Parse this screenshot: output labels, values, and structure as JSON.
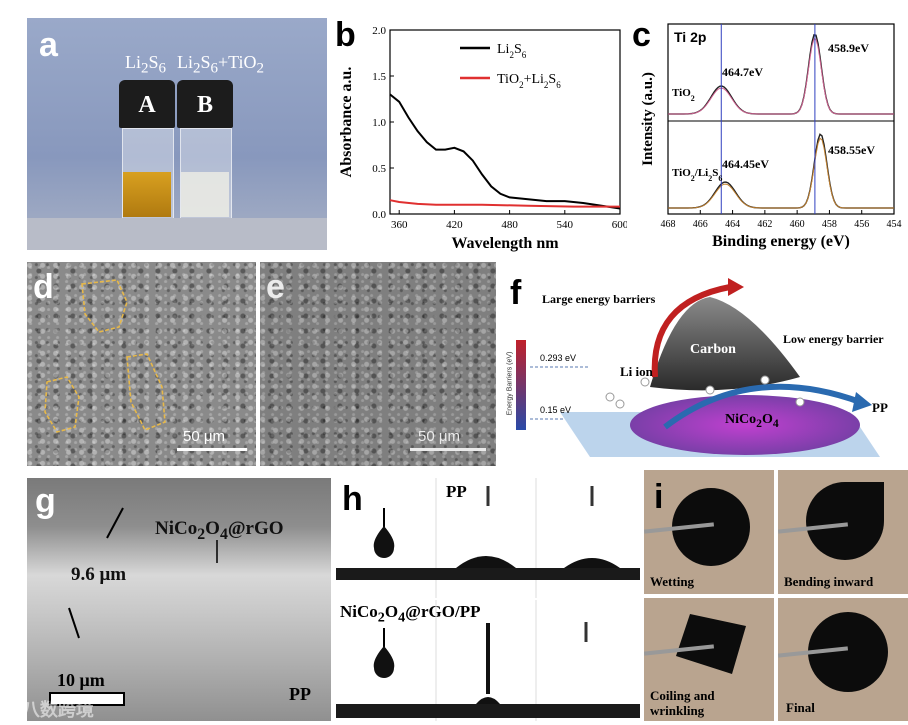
{
  "panel_a": {
    "label": "a",
    "vial_a_title_html": "Li<sub>2</sub>S<sub>6</sub>",
    "vial_b_title_html": "Li<sub>2</sub>S<sub>6</sub>+TiO<sub>2</sub>",
    "vial_a_cap": "A",
    "vial_b_cap": "B"
  },
  "panel_b": {
    "label": "b",
    "colors": {
      "li2s6": "#000000",
      "tio2_li2s6": "#e03030"
    }
  },
  "chart_data": [
    {
      "type": "line",
      "panel": "b",
      "xlabel": "Wavelength nm",
      "ylabel": "Absorbance a.u.",
      "xlim": [
        350,
        600
      ],
      "ylim": [
        0,
        2.0
      ],
      "xticks": [
        "360",
        "420",
        "480",
        "540",
        "600"
      ],
      "yticks": [
        "0.0",
        "0.5",
        "1.0",
        "1.5",
        "2.0"
      ],
      "legend_position": "top-right",
      "series": [
        {
          "name": "Li2S6",
          "x": [
            350,
            360,
            370,
            380,
            390,
            400,
            410,
            420,
            430,
            440,
            450,
            460,
            470,
            480,
            500,
            520,
            540,
            560,
            580,
            600
          ],
          "y": [
            1.3,
            1.22,
            1.05,
            0.9,
            0.78,
            0.7,
            0.7,
            0.72,
            0.68,
            0.58,
            0.43,
            0.3,
            0.22,
            0.18,
            0.16,
            0.14,
            0.14,
            0.12,
            0.09,
            0.06
          ]
        },
        {
          "name": "TiO2+Li2S6",
          "x": [
            350,
            360,
            380,
            400,
            450,
            500,
            550,
            600
          ],
          "y": [
            0.15,
            0.13,
            0.11,
            0.1,
            0.1,
            0.09,
            0.08,
            0.08
          ]
        }
      ]
    },
    {
      "type": "line",
      "panel": "c",
      "title": "Ti 2p",
      "xlabel": "Binding energy (eV)",
      "ylabel": "Intensity (a.u.)",
      "xlim": [
        468,
        454
      ],
      "xticks": [
        "468",
        "466",
        "464",
        "462",
        "460",
        "458",
        "456",
        "454"
      ],
      "series": [
        {
          "name": "TiO2",
          "peaks_eV": [
            464.7,
            458.9
          ]
        },
        {
          "name": "TiO2/Li2S6",
          "peaks_eV": [
            464.45,
            458.55
          ]
        }
      ],
      "annotations": [
        "464.7eV",
        "458.9eV",
        "464.45eV",
        "458.55eV"
      ]
    }
  ],
  "panel_c": {
    "label": "c",
    "title": "Ti 2p",
    "top_name_html": "TiO<sub>2</sub>",
    "bottom_name_html": "TiO<sub>2</sub>/Li<sub>2</sub>S<sub>6</sub>",
    "ann_top_left": "464.7eV",
    "ann_top_right": "458.9eV",
    "ann_bot_left": "464.45eV",
    "ann_bot_right": "458.55eV"
  },
  "panel_d": {
    "label": "d",
    "scale": "50 μm"
  },
  "panel_e": {
    "label": "e",
    "scale": "50 μm"
  },
  "panel_f": {
    "label": "f",
    "large_barrier": "Large energy barriers",
    "low_barrier": "Low energy barrier",
    "carbon": "Carbon",
    "li_ion": "Li ion",
    "nico_html": "NiCo<sub>2</sub>O<sub>4</sub>",
    "pp": "PP",
    "axis_title": "Energy Barriers (eV)",
    "level_high": "0.293 eV",
    "level_low": "0.15 eV"
  },
  "panel_g": {
    "label": "g",
    "material_html": "NiCo<sub>2</sub>O<sub>4</sub>@rGO",
    "thickness": "9.6 μm",
    "scale": "10 μm",
    "pp": "PP"
  },
  "panel_h": {
    "label": "h",
    "top_title": "PP",
    "bottom_title_html": "NiCo<sub>2</sub>O<sub>4</sub>@rGO/PP"
  },
  "panel_i": {
    "label": "i",
    "steps": [
      "Wetting",
      "Bending inward",
      "Coiling and wrinkling",
      "Final"
    ]
  },
  "watermark": "八数跨境"
}
